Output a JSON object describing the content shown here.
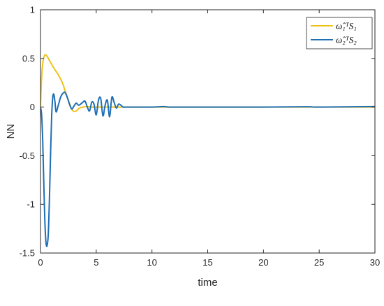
{
  "chart_data": {
    "type": "line",
    "xlabel": "time",
    "ylabel": "NN",
    "xlim": [
      0,
      30
    ],
    "ylim": [
      -1.5,
      1
    ],
    "xticks": [
      0,
      5,
      10,
      15,
      20,
      25,
      30
    ],
    "yticks": [
      -1.5,
      -1,
      -0.5,
      0,
      0.5,
      1
    ],
    "ytick_labels": [
      "-1.5",
      "-1",
      "-0.5",
      "0",
      "0.5",
      "1"
    ],
    "grid": false,
    "legend_position": "top-right",
    "series": [
      {
        "name": "ω̂₁ᵀS₁",
        "color": "#EDC21A",
        "x": [
          0,
          0.1,
          0.2,
          0.3,
          0.4,
          0.5,
          0.6,
          0.8,
          1.0,
          1.2,
          1.5,
          1.8,
          2.0,
          2.2,
          2.5,
          2.8,
          3.0,
          3.2,
          3.5,
          3.8,
          4.2,
          4.6,
          5.0,
          6.0,
          7.0,
          8.0,
          10,
          15,
          20,
          25,
          30
        ],
        "y": [
          0,
          0.3,
          0.45,
          0.51,
          0.535,
          0.535,
          0.52,
          0.48,
          0.44,
          0.4,
          0.35,
          0.29,
          0.24,
          0.17,
          0.07,
          -0.02,
          -0.045,
          -0.04,
          -0.01,
          0.0,
          0.005,
          0.0,
          0.0,
          0.0,
          0.0,
          0.0,
          0.0,
          0.0,
          0.0,
          0.0,
          0.0
        ]
      },
      {
        "name": "ω̂₂ᵀS₂",
        "color": "#1F6FB5",
        "x": [
          0,
          0.1,
          0.2,
          0.3,
          0.4,
          0.5,
          0.6,
          0.7,
          0.8,
          0.9,
          1.0,
          1.1,
          1.2,
          1.3,
          1.4,
          1.6,
          1.8,
          2.0,
          2.2,
          2.4,
          2.6,
          2.8,
          3.0,
          3.2,
          3.4,
          3.6,
          3.8,
          4.0,
          4.2,
          4.4,
          4.6,
          4.8,
          5.0,
          5.2,
          5.4,
          5.6,
          5.8,
          6.0,
          6.2,
          6.4,
          6.6,
          6.8,
          7.0,
          7.2,
          7.4,
          7.6,
          8.0,
          9.0,
          10,
          11,
          11.5,
          12,
          15,
          20,
          24,
          25,
          30
        ],
        "y": [
          0,
          -0.08,
          -0.35,
          -0.8,
          -1.2,
          -1.4,
          -1.42,
          -1.3,
          -0.95,
          -0.5,
          -0.1,
          0.1,
          0.13,
          0.05,
          -0.05,
          0.02,
          0.1,
          0.14,
          0.15,
          0.1,
          0.03,
          -0.02,
          0.01,
          0.04,
          0.02,
          0.03,
          0.05,
          0.06,
          0.0,
          -0.04,
          0.05,
          0.03,
          -0.08,
          0.07,
          0.09,
          -0.09,
          0.02,
          0.07,
          -0.1,
          0.1,
          0.05,
          -0.01,
          0.03,
          0.02,
          0.0,
          0.0,
          0.0,
          0.0,
          0.0,
          0.005,
          0.0,
          0.0,
          0.0,
          0.0,
          0.003,
          0.0,
          0.005
        ]
      }
    ]
  }
}
